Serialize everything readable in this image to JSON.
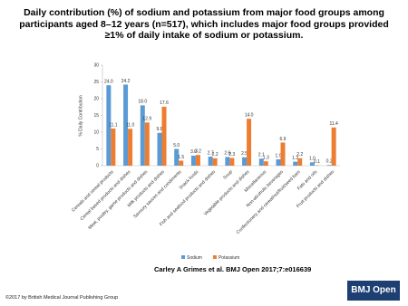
{
  "chart_data": {
    "type": "bar",
    "title": "Daily contribution (%) of sodium and potassium from major food groups among participants aged 8–12 years (n=517), which includes major food groups provided ≥1% of daily intake of sodium or potassium.",
    "y_label": "% Daily Contribution",
    "categories": [
      "Cereals and cereal products",
      "Cereal based products and dishes",
      "Meat, poultry, game products and dishes",
      "Milk products and dishes",
      "Savoury sauces and condiments",
      "Snack foods",
      "Fish and seafood products and dishes",
      "Soup",
      "Vegetable products and dishes",
      "Miscellaneous",
      "Non-alcoholic beverages",
      "Confectionery and cereal/nut/fruit/seed bars",
      "Fats and oils",
      "Fruit products and dishes"
    ],
    "series": [
      {
        "name": "Sodium",
        "color": "#5b9bd5",
        "values": [
          24.0,
          24.2,
          18.0,
          9.8,
          5.0,
          3.0,
          2.7,
          2.6,
          2.5,
          2.1,
          1.9,
          1.2,
          1.0,
          0.2
        ],
        "value_labels": [
          "24.0",
          "24.2",
          "18.0",
          "9.8",
          "5.0",
          "3.0",
          "2.7",
          "2.6",
          "2.5",
          "2.1",
          "1.9",
          "1.2",
          "1.0",
          "0.2"
        ]
      },
      {
        "name": "Potassium",
        "color": "#ed7d31",
        "values": [
          11.1,
          11.0,
          12.9,
          17.6,
          1.5,
          3.2,
          2.2,
          2.3,
          14.0,
          1.3,
          6.9,
          2.2,
          0.1,
          11.4
        ],
        "value_labels": [
          "11.1",
          "11.0",
          "12.9",
          "17.6",
          "1.5",
          "3.2",
          "2.2",
          "2.3",
          "14.0",
          "1.3",
          "6.9",
          "2.2",
          "0.1",
          "11.4"
        ]
      }
    ],
    "ylim": [
      0,
      30
    ],
    "yticks": [
      0,
      5,
      10,
      15,
      20,
      25,
      30
    ],
    "grid": false,
    "legend": "bottom"
  },
  "citation": "Carley A Grimes et al. BMJ Open 2017;7:e016639",
  "copyright": "©2017 by British Medical Journal Publishing Group",
  "logo": "BMJ Open"
}
